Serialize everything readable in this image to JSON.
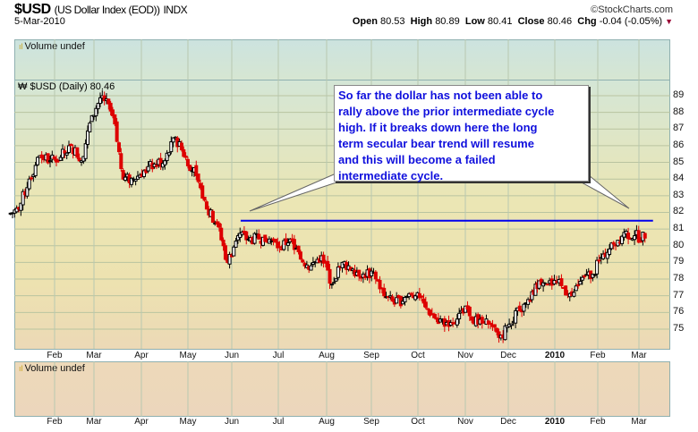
{
  "header": {
    "symbol": "$USD",
    "name": "(US Dollar Index (EOD))",
    "exchange": "INDX",
    "date": "5-Mar-2010",
    "copyright": "©StockCharts.com",
    "open_label": "Open",
    "open": "80.53",
    "high_label": "High",
    "high": "80.89",
    "low_label": "Low",
    "low": "80.41",
    "close_label": "Close",
    "close": "80.46",
    "chg_label": "Chg",
    "chg": "-0.04 (-0.05%)",
    "chg_icon": "down-triangle-icon",
    "chg_color": "#990033"
  },
  "panels": {
    "top_label": "Volume undef",
    "main_label": "$USD (Daily) 80.46",
    "bottom_label": "Volume undef"
  },
  "annotation": {
    "text": "So far the dollar has not been able to\nrally above the prior intermediate cycle\nhigh. If it breaks down here the long\nterm secular bear trend will resume\nand this will become a failed\nintermediate cycle.",
    "color": "#1010dd"
  },
  "chart_data": {
    "type": "candlestick",
    "title": "$USD (Daily) 80.46",
    "x_ticks": [
      "Feb",
      "Mar",
      "Apr",
      "May",
      "Jun",
      "Jul",
      "Aug",
      "Sep",
      "Oct",
      "Nov",
      "Dec",
      "2010",
      "Feb",
      "Mar"
    ],
    "y_ticks": [
      89,
      88,
      87,
      86,
      85,
      84,
      83,
      82,
      81,
      80,
      79,
      78,
      77,
      76,
      75
    ],
    "ylim": [
      74,
      90
    ],
    "grid": true,
    "up_color": "#000000",
    "down_color": "#dd0000",
    "resistance_line": {
      "value": 81.5,
      "from": "2009-06-05",
      "to": "2010-03-05",
      "color": "#0000ee"
    },
    "weekly_closes": [
      [
        "2009-01-09",
        82.2
      ],
      [
        "2009-01-16",
        84.0
      ],
      [
        "2009-01-23",
        85.4
      ],
      [
        "2009-01-30",
        85.1
      ],
      [
        "2009-02-06",
        85.3
      ],
      [
        "2009-02-13",
        86.0
      ],
      [
        "2009-02-20",
        85.1
      ],
      [
        "2009-02-27",
        87.8
      ],
      [
        "2009-03-06",
        89.0
      ],
      [
        "2009-03-13",
        87.8
      ],
      [
        "2009-03-20",
        84.0
      ],
      [
        "2009-03-27",
        84.0
      ],
      [
        "2009-04-03",
        84.5
      ],
      [
        "2009-04-10",
        84.9
      ],
      [
        "2009-04-17",
        85.1
      ],
      [
        "2009-04-24",
        86.5
      ],
      [
        "2009-05-01",
        85.3
      ],
      [
        "2009-05-08",
        84.2
      ],
      [
        "2009-05-15",
        82.2
      ],
      [
        "2009-05-22",
        81.3
      ],
      [
        "2009-05-29",
        79.0
      ],
      [
        "2009-06-05",
        80.6
      ],
      [
        "2009-06-12",
        80.4
      ],
      [
        "2009-06-19",
        80.4
      ],
      [
        "2009-06-26",
        80.4
      ],
      [
        "2009-07-03",
        79.9
      ],
      [
        "2009-07-10",
        80.4
      ],
      [
        "2009-07-17",
        79.2
      ],
      [
        "2009-07-24",
        78.8
      ],
      [
        "2009-07-31",
        79.4
      ],
      [
        "2009-08-07",
        77.7
      ],
      [
        "2009-08-14",
        79.0
      ],
      [
        "2009-08-21",
        78.6
      ],
      [
        "2009-08-28",
        78.3
      ],
      [
        "2009-09-04",
        78.4
      ],
      [
        "2009-09-11",
        77.0
      ],
      [
        "2009-09-18",
        76.5
      ],
      [
        "2009-09-25",
        76.9
      ],
      [
        "2009-10-02",
        77.0
      ],
      [
        "2009-10-09",
        76.3
      ],
      [
        "2009-10-16",
        75.6
      ],
      [
        "2009-10-23",
        75.4
      ],
      [
        "2009-10-30",
        75.6
      ],
      [
        "2009-11-06",
        76.2
      ],
      [
        "2009-11-13",
        75.3
      ],
      [
        "2009-11-20",
        75.3
      ],
      [
        "2009-11-27",
        74.5
      ],
      [
        "2009-12-04",
        75.3
      ],
      [
        "2009-12-11",
        76.1
      ],
      [
        "2009-12-18",
        76.7
      ],
      [
        "2009-12-24",
        77.9
      ],
      [
        "2009-12-31",
        77.9
      ],
      [
        "2010-01-08",
        77.6
      ],
      [
        "2010-01-15",
        77.0
      ],
      [
        "2010-01-22",
        78.1
      ],
      [
        "2010-01-29",
        78.3
      ],
      [
        "2010-02-05",
        79.5
      ],
      [
        "2010-02-12",
        80.1
      ],
      [
        "2010-02-19",
        80.8
      ],
      [
        "2010-02-26",
        80.6
      ],
      [
        "2010-03-05",
        80.46
      ]
    ]
  }
}
